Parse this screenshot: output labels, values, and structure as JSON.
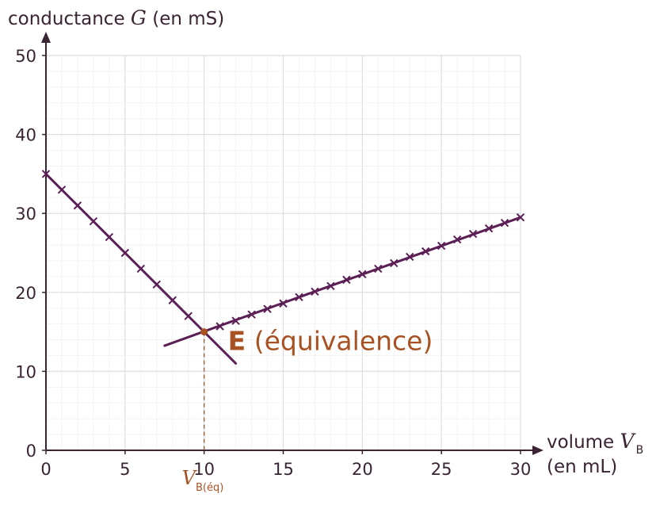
{
  "chart_data": {
    "type": "line",
    "ylabel": {
      "pre": "conductance ",
      "var": "G",
      "post": " (en mS)"
    },
    "xlabel": {
      "pre": "volume ",
      "var": "V",
      "sub": "B",
      "unit": "(en mL)"
    },
    "xlim": [
      0,
      30
    ],
    "ylim": [
      0,
      50
    ],
    "xticks": [
      "0",
      "5",
      "10",
      "15",
      "20",
      "25",
      "30"
    ],
    "yticks": [
      "0",
      "10",
      "20",
      "30",
      "40",
      "50"
    ],
    "grid": true,
    "series": [
      {
        "color": "#5b1f55",
        "marker": "x",
        "line": {
          "x": [
            0,
            12
          ],
          "y": [
            35,
            11
          ]
        },
        "points": {
          "x": [
            0,
            1,
            2,
            3,
            4,
            5,
            6,
            7,
            8,
            9
          ],
          "y": [
            35,
            33,
            31,
            29,
            27,
            25,
            23,
            21,
            19,
            17
          ]
        }
      },
      {
        "color": "#5b1f55",
        "marker": "x",
        "line": {
          "x": [
            7.5,
            30
          ],
          "y": [
            13.25,
            29.5
          ]
        },
        "points": {
          "x": [
            11,
            12,
            13,
            14,
            15,
            16,
            17,
            18,
            19,
            20,
            21,
            22,
            23,
            24,
            25,
            26,
            27,
            28,
            29,
            30
          ],
          "y": [
            15.7,
            16.4,
            17.2,
            17.9,
            18.6,
            19.4,
            20.1,
            20.8,
            21.6,
            22.3,
            23.0,
            23.7,
            24.5,
            25.2,
            25.9,
            26.7,
            27.4,
            28.1,
            28.8,
            29.5
          ]
        }
      }
    ],
    "annotations": {
      "equivalence": {
        "x": 10,
        "y": 15,
        "letter": "E",
        "text": " (équivalence)",
        "color": "#a85223"
      },
      "veq": {
        "var": "V",
        "sub": "B(éq)",
        "color": "#a85223"
      }
    }
  }
}
